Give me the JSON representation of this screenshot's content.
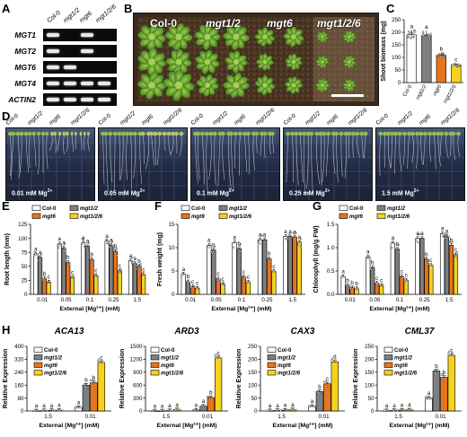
{
  "panels": {
    "A": "A",
    "B": "B",
    "C": "C",
    "D": "D",
    "E": "E",
    "F": "F",
    "G": "G",
    "H": "H"
  },
  "panel_a": {
    "columns": [
      "Col-0",
      "mgt1/2",
      "mgt6",
      "mgt1/2/6"
    ],
    "rows": [
      "MGT1",
      "MGT2",
      "MGT6",
      "MGT4",
      "ACTIN2"
    ],
    "bands": [
      [
        1,
        0,
        1,
        0
      ],
      [
        1,
        0,
        1,
        0
      ],
      [
        1,
        1,
        0,
        0
      ],
      [
        1,
        1,
        1,
        1
      ],
      [
        1,
        1,
        1,
        1
      ]
    ]
  },
  "panel_b": {
    "genotypes": [
      "Col-0",
      "mgt1/2",
      "mgt6",
      "mgt1/2/6"
    ]
  },
  "panel_d": {
    "plates": [
      {
        "label": "0.01 mM Mg",
        "sup": "2+"
      },
      {
        "label": "0.05 mM Mg",
        "sup": "2+"
      },
      {
        "label": "0.1 mM Mg",
        "sup": "2+"
      },
      {
        "label": "0.25 mM Mg",
        "sup": "2+"
      },
      {
        "label": "1.5 mM Mg",
        "sup": "2+"
      }
    ],
    "genotypes": [
      "Col-0",
      "mgt1/2",
      "mgt6",
      "mgt1/2/6"
    ]
  },
  "legend": [
    "Col-0",
    "mgt1/2",
    "mgt6",
    "mgt1/2/6"
  ],
  "colors": {
    "Col-0": "#ffffff",
    "mgt1/2": "#7f7f7f",
    "mgt6": "#e8741c",
    "mgt1/2/6": "#f5d21e"
  },
  "chart_data": [
    {
      "id": "C",
      "type": "bar",
      "ylabel": "Shoot biomass (mg)",
      "ylim": [
        0,
        250
      ],
      "yticks": [
        0,
        50,
        100,
        150,
        200,
        250
      ],
      "categories": [
        "Col-0",
        "mgt1/2",
        "mgt6",
        "mgt1/2/6"
      ],
      "values": [
        190,
        188,
        108,
        70
      ],
      "letters": [
        "a",
        "a",
        "b",
        "c"
      ]
    },
    {
      "id": "E",
      "type": "bar",
      "ylabel": "Root length (mm)",
      "xlabel": "External [Mg²⁺] (mM)",
      "ylim": [
        0,
        125
      ],
      "yticks": [
        0,
        25,
        50,
        75,
        100,
        125
      ],
      "categories": [
        "0.01",
        "0.05",
        "0.1",
        "0.25",
        "1.5"
      ],
      "series": [
        {
          "name": "Col-0",
          "values": [
            72,
            90,
            92,
            95,
            60
          ]
        },
        {
          "name": "mgt1/2",
          "values": [
            66,
            83,
            86,
            88,
            55
          ]
        },
        {
          "name": "mgt6",
          "values": [
            28,
            57,
            62,
            77,
            50
          ]
        },
        {
          "name": "mgt1/2/6",
          "values": [
            22,
            30,
            33,
            42,
            35
          ]
        }
      ],
      "letters": [
        [
          "a",
          "a",
          "b",
          "c"
        ],
        [
          "a",
          "a",
          "b",
          "c"
        ],
        [
          "a",
          "a",
          "b",
          "c"
        ],
        [
          "a",
          "a",
          "b",
          "c"
        ],
        [
          "a",
          "a",
          "b",
          "c"
        ]
      ]
    },
    {
      "id": "F",
      "type": "bar",
      "ylabel": "Fresh weight (mg)",
      "xlabel": "External [Mg²⁺] (mM)",
      "ylim": [
        0,
        15
      ],
      "yticks": [
        0,
        5,
        10,
        15
      ],
      "categories": [
        "0.01",
        "0.05",
        "0.1",
        "0.25",
        "1.5"
      ],
      "series": [
        {
          "name": "Col-0",
          "values": [
            4.3,
            10.5,
            11.1,
            11.7,
            12.4
          ]
        },
        {
          "name": "mgt1/2",
          "values": [
            2.7,
            9.5,
            9.8,
            11.7,
            12.4
          ]
        },
        {
          "name": "mgt6",
          "values": [
            1.6,
            3.3,
            3.7,
            7.6,
            12.3
          ]
        },
        {
          "name": "mgt1/2/6",
          "values": [
            1.3,
            2.2,
            2.6,
            4.9,
            11.2
          ]
        }
      ],
      "letters": [
        [
          "a",
          "b",
          "c",
          "c"
        ],
        [
          "a",
          "b",
          "c",
          "c"
        ],
        [
          "a",
          "b",
          "c",
          "c"
        ],
        [
          "a",
          "a",
          "b",
          "c"
        ],
        [
          "a",
          "a",
          "a",
          "a"
        ]
      ]
    },
    {
      "id": "G",
      "type": "bar",
      "ylabel": "Chlorophyll (mg/g FW)",
      "xlabel": "External [Mg²⁺] (mM)",
      "ylim": [
        0,
        1.5
      ],
      "yticks": [
        0,
        0.5,
        1.0,
        1.5
      ],
      "categories": [
        "0.01",
        "0.05",
        "0.1",
        "0.25",
        "1.5"
      ],
      "series": [
        {
          "name": "Col-0",
          "values": [
            0.38,
            0.8,
            1.1,
            1.2,
            1.3
          ]
        },
        {
          "name": "mgt1/2",
          "values": [
            0.19,
            0.57,
            0.97,
            1.2,
            1.25
          ]
        },
        {
          "name": "mgt6",
          "values": [
            0.14,
            0.24,
            0.38,
            0.75,
            1.05
          ]
        },
        {
          "name": "mgt1/2/6",
          "values": [
            0.12,
            0.19,
            0.3,
            0.62,
            0.85
          ]
        }
      ],
      "letters": [
        [
          "a",
          "b",
          "b",
          "b"
        ],
        [
          "a",
          "b",
          "c",
          "c"
        ],
        [
          "a",
          "b",
          "c",
          "c"
        ],
        [
          "a",
          "a",
          "b",
          "c"
        ],
        [
          "a",
          "a",
          "b",
          "c"
        ]
      ]
    },
    {
      "id": "H1",
      "type": "bar",
      "gene": "ACA13",
      "ylabel": "Relative Expression",
      "xlabel": "External [Mg²⁺] (mM)",
      "ylim": [
        0,
        400
      ],
      "yticks": [
        0,
        80,
        160,
        240,
        320,
        400
      ],
      "categories": [
        "1.5",
        "0.01"
      ],
      "series": [
        {
          "name": "Col-0",
          "values": [
            1,
            22
          ]
        },
        {
          "name": "mgt1/2",
          "values": [
            2,
            160
          ]
        },
        {
          "name": "mgt6",
          "values": [
            3,
            175
          ]
        },
        {
          "name": "mgt1/2/6",
          "values": [
            4,
            300
          ]
        }
      ],
      "letters": [
        [
          "a",
          "a",
          "a",
          "a"
        ],
        [
          "a",
          "b",
          "b",
          "c"
        ]
      ]
    },
    {
      "id": "H2",
      "type": "bar",
      "gene": "ARD3",
      "ylabel": "Relative Expression",
      "xlabel": "External [Mg²⁺] (mM)",
      "ylim": [
        0,
        1500
      ],
      "yticks": [
        0,
        300,
        600,
        900,
        1200,
        1500
      ],
      "categories": [
        "1.5",
        "0.01"
      ],
      "series": [
        {
          "name": "Col-0",
          "values": [
            1,
            20
          ]
        },
        {
          "name": "mgt1/2",
          "values": [
            2,
            110
          ]
        },
        {
          "name": "mgt6",
          "values": [
            8,
            310
          ]
        },
        {
          "name": "mgt1/2/6",
          "values": [
            30,
            1230
          ]
        }
      ],
      "letters": [
        [
          "a",
          "a",
          "a",
          "a"
        ],
        [
          "a",
          "a",
          "b",
          "c"
        ]
      ]
    },
    {
      "id": "H3",
      "type": "bar",
      "gene": "CAX3",
      "ylabel": "Relative Expression",
      "xlabel": "External [Mg²⁺] (mM)",
      "ylim": [
        0,
        250
      ],
      "yticks": [
        0,
        50,
        100,
        150,
        200,
        250
      ],
      "categories": [
        "1.5",
        "0.01"
      ],
      "series": [
        {
          "name": "Col-0",
          "values": [
            1,
            18
          ]
        },
        {
          "name": "mgt1/2",
          "values": [
            2,
            75
          ]
        },
        {
          "name": "mgt6",
          "values": [
            3,
            105
          ]
        },
        {
          "name": "mgt1/2/6",
          "values": [
            5,
            190
          ]
        }
      ],
      "letters": [
        [
          "a",
          "a",
          "a",
          "a"
        ],
        [
          "a",
          "b",
          "c",
          "d"
        ]
      ]
    },
    {
      "id": "H4",
      "type": "bar",
      "gene": "CML37",
      "ylabel": "Relative Expression",
      "xlabel": "External [Mg²⁺] (mM)",
      "ylim": [
        0,
        250
      ],
      "yticks": [
        0,
        50,
        100,
        150,
        200,
        250
      ],
      "categories": [
        "1.5",
        "0.01"
      ],
      "series": [
        {
          "name": "Col-0",
          "values": [
            1,
            50
          ]
        },
        {
          "name": "mgt1/2",
          "values": [
            2,
            155
          ]
        },
        {
          "name": "mgt6",
          "values": [
            3,
            130
          ]
        },
        {
          "name": "mgt1/2/6",
          "values": [
            4,
            215
          ]
        }
      ],
      "letters": [
        [
          "a",
          "a",
          "a",
          "a"
        ],
        [
          "a",
          "b",
          "b",
          "c"
        ]
      ]
    }
  ]
}
